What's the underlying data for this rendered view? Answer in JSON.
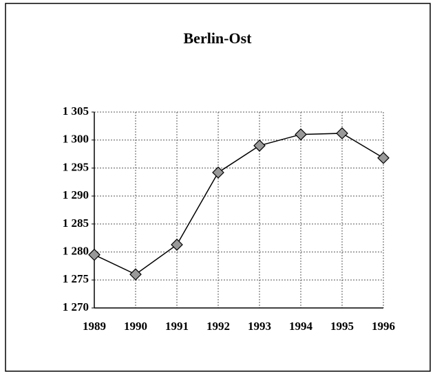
{
  "chart_data": {
    "type": "line",
    "title": "Berlin-Ost",
    "categories": [
      "1989",
      "1990",
      "1991",
      "1992",
      "1993",
      "1994",
      "1995",
      "1996"
    ],
    "series": [
      {
        "name": "Berlin-Ost",
        "color": "#000000",
        "values": [
          1279.5,
          1276,
          1281.3,
          1294.2,
          1299,
          1301,
          1301.2,
          1296.8
        ]
      }
    ],
    "ylim": [
      1270,
      1305
    ],
    "yticks": [
      {
        "value": 1270,
        "label": "1 270"
      },
      {
        "value": 1275,
        "label": "1 275"
      },
      {
        "value": 1280,
        "label": "1 280"
      },
      {
        "value": 1285,
        "label": "1 285"
      },
      {
        "value": 1290,
        "label": "1 290"
      },
      {
        "value": 1295,
        "label": "1 295"
      },
      {
        "value": 1300,
        "label": "1 300"
      },
      {
        "value": 1305,
        "label": "1 305"
      }
    ],
    "grid": true
  }
}
